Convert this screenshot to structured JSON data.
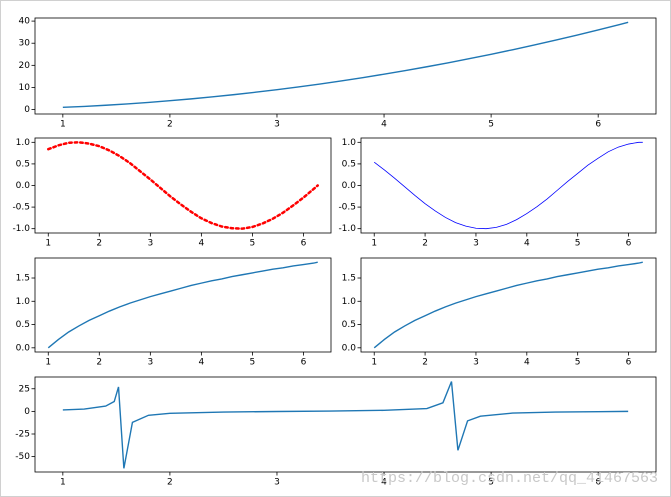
{
  "watermark": "https://blog.csdn.net/qq_41467563",
  "chart_data": [
    {
      "type": "line",
      "x": [
        1.0,
        1.2,
        1.4,
        1.6,
        1.8,
        2.0,
        2.2,
        2.4,
        2.6,
        2.8,
        3.0,
        3.2,
        3.4,
        3.6,
        3.8,
        4.0,
        4.2,
        4.4,
        4.6,
        4.8,
        5.0,
        5.2,
        5.4,
        5.6,
        5.8,
        6.0,
        6.2,
        6.28
      ],
      "series": [
        {
          "color": "#1f77b4",
          "linestyle": "solid",
          "values": [
            1,
            1.44,
            1.96,
            2.56,
            3.24,
            4,
            4.84,
            5.76,
            6.76,
            7.84,
            9,
            10.24,
            11.56,
            12.96,
            14.44,
            16,
            17.64,
            19.36,
            21.16,
            23.04,
            25,
            27.04,
            29.16,
            31.36,
            33.64,
            36,
            38.44,
            39.44
          ]
        }
      ],
      "xlim": [
        0.74,
        6.54
      ],
      "ylim": [
        -2,
        41.4
      ],
      "xticks": [
        1,
        2,
        3,
        4,
        5,
        6
      ],
      "yticks": [
        0,
        10,
        20,
        30,
        40
      ]
    },
    {
      "type": "line",
      "x": [
        1.0,
        1.2,
        1.4,
        1.6,
        1.8,
        2.0,
        2.2,
        2.4,
        2.6,
        2.8,
        3.0,
        3.2,
        3.4,
        3.6,
        3.8,
        4.0,
        4.2,
        4.4,
        4.6,
        4.8,
        5.0,
        5.2,
        5.4,
        5.6,
        5.8,
        6.0,
        6.2,
        6.28
      ],
      "series": [
        {
          "color": "#ff0000",
          "linestyle": "dotted",
          "values": [
            0.84,
            0.93,
            0.99,
            1.0,
            0.97,
            0.91,
            0.81,
            0.68,
            0.52,
            0.33,
            0.14,
            -0.06,
            -0.26,
            -0.44,
            -0.61,
            -0.76,
            -0.87,
            -0.95,
            -0.99,
            -1.0,
            -0.96,
            -0.88,
            -0.77,
            -0.63,
            -0.46,
            -0.28,
            -0.08,
            0.0
          ]
        }
      ],
      "xlim": [
        0.74,
        6.54
      ],
      "ylim": [
        -1.1,
        1.1
      ],
      "xticks": [
        1,
        2,
        3,
        4,
        5,
        6
      ],
      "yticks": [
        {
          "value": -1,
          "label": "-1.0"
        },
        {
          "value": -0.5,
          "label": "-0.5"
        },
        {
          "value": 0,
          "label": "0.0"
        },
        {
          "value": 0.5,
          "label": "0.5"
        },
        {
          "value": 1,
          "label": "1.0"
        }
      ]
    },
    {
      "type": "line",
      "x": [
        1.0,
        1.2,
        1.4,
        1.6,
        1.8,
        2.0,
        2.2,
        2.4,
        2.6,
        2.8,
        3.0,
        3.2,
        3.4,
        3.6,
        3.8,
        4.0,
        4.2,
        4.4,
        4.6,
        4.8,
        5.0,
        5.2,
        5.4,
        5.6,
        5.8,
        6.0,
        6.2,
        6.28
      ],
      "series": [
        {
          "color": "#0000ff",
          "linestyle": "thin",
          "values": [
            0.54,
            0.36,
            0.17,
            -0.03,
            -0.23,
            -0.42,
            -0.59,
            -0.74,
            -0.86,
            -0.94,
            -0.99,
            -1.0,
            -0.97,
            -0.9,
            -0.79,
            -0.65,
            -0.49,
            -0.31,
            -0.11,
            0.09,
            0.28,
            0.47,
            0.63,
            0.78,
            0.89,
            0.96,
            1.0,
            1.0
          ]
        }
      ],
      "xlim": [
        0.74,
        6.54
      ],
      "ylim": [
        -1.1,
        1.1
      ],
      "xticks": [
        1,
        2,
        3,
        4,
        5,
        6
      ],
      "yticks": [
        {
          "value": -1,
          "label": "-1.0"
        },
        {
          "value": -0.5,
          "label": "-0.5"
        },
        {
          "value": 0,
          "label": "0.0"
        },
        {
          "value": 0.5,
          "label": "0.5"
        },
        {
          "value": 1,
          "label": "1.0"
        }
      ]
    },
    {
      "type": "line",
      "x": [
        1.0,
        1.2,
        1.4,
        1.6,
        1.8,
        2.0,
        2.2,
        2.4,
        2.6,
        2.8,
        3.0,
        3.2,
        3.4,
        3.6,
        3.8,
        4.0,
        4.2,
        4.4,
        4.6,
        4.8,
        5.0,
        5.2,
        5.4,
        5.6,
        5.8,
        6.0,
        6.2,
        6.28
      ],
      "series": [
        {
          "color": "#1f77b4",
          "linestyle": "solid",
          "values": [
            0,
            0.18,
            0.34,
            0.47,
            0.59,
            0.69,
            0.79,
            0.88,
            0.96,
            1.03,
            1.1,
            1.16,
            1.22,
            1.28,
            1.34,
            1.39,
            1.44,
            1.48,
            1.53,
            1.57,
            1.61,
            1.65,
            1.69,
            1.72,
            1.76,
            1.79,
            1.82,
            1.84
          ]
        }
      ],
      "xlim": [
        0.74,
        6.54
      ],
      "ylim": [
        -0.09,
        1.93
      ],
      "xticks": [
        1,
        2,
        3,
        4,
        5,
        6
      ],
      "yticks": [
        {
          "value": 0,
          "label": "0.0"
        },
        {
          "value": 0.5,
          "label": "0.5"
        },
        {
          "value": 1,
          "label": "1.0"
        },
        {
          "value": 1.5,
          "label": "1.5"
        }
      ]
    },
    {
      "type": "line",
      "x": [
        1.0,
        1.2,
        1.4,
        1.6,
        1.8,
        2.0,
        2.2,
        2.4,
        2.6,
        2.8,
        3.0,
        3.2,
        3.4,
        3.6,
        3.8,
        4.0,
        4.2,
        4.4,
        4.6,
        4.8,
        5.0,
        5.2,
        5.4,
        5.6,
        5.8,
        6.0,
        6.2,
        6.28
      ],
      "series": [
        {
          "color": "#1f77b4",
          "linestyle": "solid",
          "values": [
            0,
            0.18,
            0.34,
            0.47,
            0.59,
            0.69,
            0.79,
            0.88,
            0.96,
            1.03,
            1.1,
            1.16,
            1.22,
            1.28,
            1.34,
            1.39,
            1.44,
            1.48,
            1.53,
            1.57,
            1.61,
            1.65,
            1.69,
            1.72,
            1.76,
            1.79,
            1.82,
            1.84
          ]
        }
      ],
      "xlim": [
        0.74,
        6.54
      ],
      "ylim": [
        -0.09,
        1.93
      ],
      "xticks": [
        1,
        2,
        3,
        4,
        5,
        6
      ],
      "yticks": [
        {
          "value": 0,
          "label": "0.0"
        },
        {
          "value": 0.5,
          "label": "0.5"
        },
        {
          "value": 1,
          "label": "1.0"
        },
        {
          "value": 1.5,
          "label": "1.5"
        }
      ]
    },
    {
      "type": "line",
      "x": [
        1.0,
        1.2,
        1.4,
        1.48,
        1.52,
        1.57,
        1.65,
        1.8,
        2.0,
        2.5,
        3.0,
        3.5,
        4.0,
        4.4,
        4.55,
        4.63,
        4.69,
        4.78,
        4.9,
        5.2,
        5.6,
        6.0,
        6.28
      ],
      "series": [
        {
          "color": "#1f77b4",
          "linestyle": "solid",
          "values": [
            1.56,
            2.57,
            5.8,
            10.9,
            27,
            -63,
            -12.1,
            -4.3,
            -2.19,
            -0.75,
            -0.14,
            0.37,
            1.16,
            3.1,
            9.5,
            33,
            -43,
            -10.5,
            -5.3,
            -1.89,
            -0.81,
            -0.29,
            0.0
          ]
        }
      ],
      "xlim": [
        0.74,
        6.54
      ],
      "ylim": [
        -67,
        38
      ],
      "xticks": [
        1,
        2,
        3,
        4,
        5,
        6
      ],
      "yticks": [
        -50,
        -25,
        0,
        25
      ]
    }
  ]
}
